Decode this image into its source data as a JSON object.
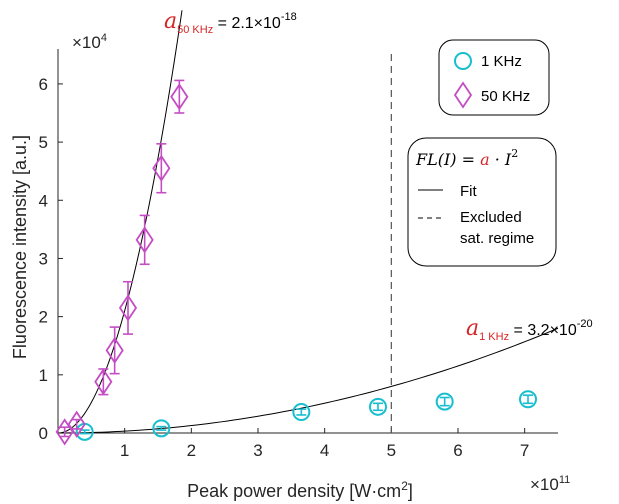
{
  "chart_data": {
    "type": "scatter",
    "xlabel": "Peak power density [W·cm",
    "xlabel_sup": "2",
    "xlabel_close": "]",
    "ylabel": "Fluorescence intensity [a.u.]",
    "x_multiplier": "×10",
    "x_multiplier_exp": "11",
    "y_multiplier": "×10",
    "y_multiplier_exp": "4",
    "xlim": [
      0,
      7.5
    ],
    "ylim": [
      0,
      6.6
    ],
    "x_ticks": [
      1,
      2,
      3,
      4,
      5,
      6,
      7
    ],
    "y_ticks": [
      0,
      1,
      2,
      3,
      4,
      5,
      6
    ],
    "grid": false,
    "legend_placement": "top-right",
    "series": [
      {
        "name": "1 KHz",
        "marker": "circle",
        "color": "#17becf",
        "x": [
          0.4,
          1.55,
          3.65,
          4.8,
          5.8,
          7.05
        ],
        "y": [
          0.02,
          0.08,
          0.36,
          0.45,
          0.54,
          0.58
        ],
        "y_err": [
          0.03,
          0.03,
          0.05,
          0.06,
          0.07,
          0.07
        ]
      },
      {
        "name": "50 KHz",
        "marker": "diamond",
        "color": "#c44dc4",
        "x": [
          0.1,
          0.28,
          0.68,
          0.85,
          1.05,
          1.3,
          1.55,
          1.82
        ],
        "y": [
          0.02,
          0.15,
          0.88,
          1.42,
          2.15,
          3.32,
          4.55,
          5.78
        ],
        "y_err": [
          0.08,
          0.08,
          0.22,
          0.4,
          0.45,
          0.42,
          0.42,
          0.28
        ]
      }
    ],
    "fits": [
      {
        "name": "Fit",
        "applies_to": "50 KHz",
        "line_style": "solid",
        "a_symbol": "a",
        "a_subscript": "50 KHz",
        "a_value": " = 2.1×10",
        "a_value_exp": "-18",
        "coefficient": 2.1e-18,
        "x_range": [
          0,
          1.86
        ]
      },
      {
        "name": "Fit",
        "applies_to": "1 KHz",
        "line_style": "solid",
        "a_symbol": "a",
        "a_subscript": "1 KHz",
        "a_value": " = 3.2×10",
        "a_value_exp": "-20",
        "coefficient": 3.2e-20,
        "x_range": [
          0,
          7.5
        ]
      }
    ],
    "excluded_line": {
      "x": 5,
      "line_style": "dashed"
    },
    "legend": [
      {
        "label": "1 KHz",
        "marker": "circle"
      },
      {
        "label": "50 KHz",
        "marker": "diamond"
      }
    ],
    "info_box": {
      "formula_lhs": "FL(I) = ",
      "formula_a": "a",
      "formula_rhs": " · I",
      "formula_exp": "2",
      "fit_label": "Fit",
      "excluded_label_1": "Excluded",
      "excluded_label_2": "sat. regime"
    }
  }
}
